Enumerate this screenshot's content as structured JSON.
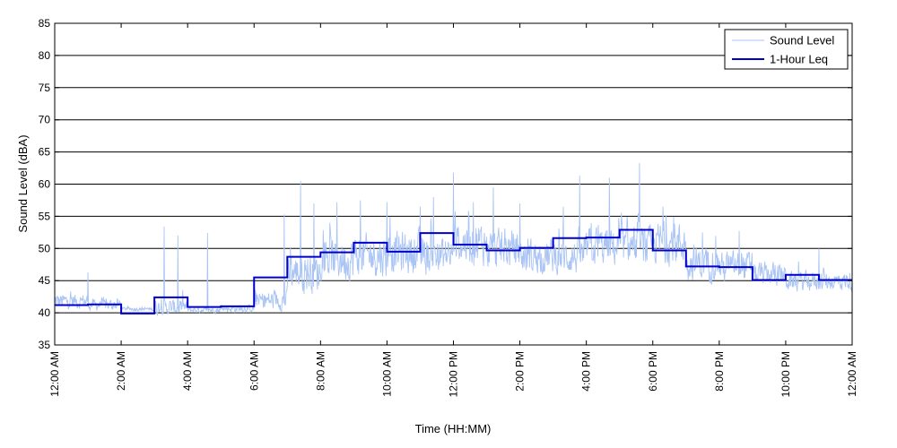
{
  "chart_data": {
    "type": "line",
    "title": "",
    "xlabel": "Time (HH:MM)",
    "ylabel": "Sound Level (dBA)",
    "ylim": [
      35,
      85
    ],
    "yticks": [
      35,
      40,
      45,
      50,
      55,
      60,
      65,
      70,
      75,
      80,
      85
    ],
    "xlim": [
      0,
      24
    ],
    "x_units": "hours",
    "xtick_values": [
      0,
      2,
      4,
      6,
      8,
      10,
      12,
      14,
      16,
      18,
      20,
      22,
      24
    ],
    "xtick_labels": [
      "12:00 AM",
      "2:00 AM",
      "4:00 AM",
      "6:00 AM",
      "8:00 AM",
      "10:00 AM",
      "12:00 PM",
      "2:00 PM",
      "4:00 PM",
      "6:00 PM",
      "8:00 PM",
      "10:00 PM",
      "12:00 AM"
    ],
    "grid": "horizontal",
    "legend": "top-right",
    "colors": {
      "sound_level": "#a9c4f5",
      "leq": "#0000cc"
    },
    "series": [
      {
        "name": "Sound Level",
        "style": "thin-line",
        "hourly_mean": [
          41.5,
          41.0,
          40.5,
          40.5,
          40.3,
          40.5,
          41.5,
          45.5,
          47.5,
          48.0,
          48.5,
          48.0,
          50.0,
          49.0,
          48.0,
          48.0,
          49.5,
          49.5,
          50.0,
          47.0,
          46.5,
          45.5,
          44.5,
          44.5
        ],
        "hourly_spread": [
          2.0,
          1.5,
          0.5,
          2.0,
          0.8,
          1.0,
          2.5,
          5.0,
          5.5,
          5.5,
          5.5,
          5.0,
          5.5,
          5.0,
          4.5,
          4.5,
          5.0,
          5.0,
          5.5,
          4.5,
          4.0,
          3.0,
          2.5,
          2.5
        ],
        "peaks": [
          [
            1.0,
            46.3
          ],
          [
            3.3,
            53.4
          ],
          [
            3.7,
            52.0
          ],
          [
            4.6,
            52.4
          ],
          [
            6.9,
            55.3
          ],
          [
            7.4,
            60.5
          ],
          [
            7.8,
            57.0
          ],
          [
            8.5,
            57.2
          ],
          [
            9.2,
            57.5
          ],
          [
            10.0,
            57.2
          ],
          [
            11.0,
            56.5
          ],
          [
            11.4,
            58.0
          ],
          [
            12.0,
            61.8
          ],
          [
            12.6,
            57.2
          ],
          [
            13.2,
            59.5
          ],
          [
            14.0,
            57.0
          ],
          [
            15.3,
            56.5
          ],
          [
            15.8,
            61.3
          ],
          [
            16.7,
            61.0
          ],
          [
            17.6,
            63.3
          ],
          [
            18.3,
            56.5
          ],
          [
            19.5,
            52.5
          ],
          [
            20.6,
            52.7
          ],
          [
            23.0,
            50.0
          ]
        ]
      },
      {
        "name": "1-Hour Leq",
        "style": "step",
        "x": [
          0,
          1,
          2,
          3,
          4,
          5,
          6,
          7,
          8,
          9,
          10,
          11,
          12,
          13,
          14,
          15,
          16,
          17,
          18,
          19,
          20,
          21,
          22,
          23
        ],
        "values": [
          41.2,
          41.3,
          39.9,
          42.4,
          40.9,
          41.0,
          45.5,
          48.7,
          49.4,
          50.9,
          49.5,
          52.4,
          50.6,
          49.7,
          50.1,
          51.6,
          51.7,
          52.9,
          49.7,
          47.2,
          47.1,
          45.1,
          45.9,
          45.1
        ]
      }
    ]
  }
}
